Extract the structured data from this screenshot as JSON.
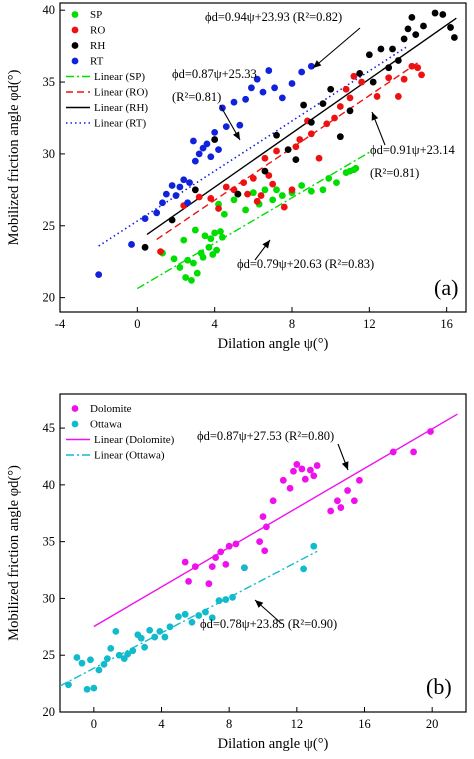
{
  "chart_data": [
    {
      "type": "scatter",
      "panel_label": "(a)",
      "xlabel": "Dilation angle ψ(°)",
      "ylabel": "Mobilized friction angle φd(°)",
      "xlim": [
        -4,
        17
      ],
      "ylim": [
        19,
        40.5
      ],
      "xticks": [
        -4,
        0,
        4,
        8,
        12,
        16
      ],
      "yticks": [
        20,
        25,
        30,
        35,
        40
      ],
      "legend_position": "top-left",
      "series": [
        {
          "name": "SP",
          "color": "#00dd00",
          "x": [
            1.3,
            1.9,
            2.2,
            2.4,
            2.5,
            2.6,
            2.8,
            2.9,
            3.0,
            3.1,
            3.3,
            3.4,
            3.5,
            3.7,
            3.8,
            3.9,
            4.0,
            4.1,
            4.2,
            4.3,
            4.4,
            4.5,
            5.0,
            5.2,
            5.6,
            6.0,
            6.3,
            6.6,
            7.0,
            7.2,
            7.5,
            8.0,
            8.5,
            9.0,
            9.6,
            9.9,
            10.3,
            10.8,
            11.0,
            11.2,
            11.3
          ],
          "y": [
            23.1,
            22.7,
            22.1,
            24.0,
            21.4,
            22.6,
            21.2,
            22.4,
            24.7,
            21.7,
            23.1,
            22.8,
            24.3,
            23.5,
            24.1,
            23.0,
            24.5,
            23.3,
            26.5,
            24.6,
            24.2,
            25.8,
            26.8,
            27.2,
            26.1,
            27.3,
            26.5,
            27.5,
            26.8,
            27.5,
            27.1,
            27.3,
            27.8,
            27.4,
            27.5,
            28.3,
            28.0,
            28.7,
            28.8,
            28.9,
            29.0
          ]
        },
        {
          "name": "RO",
          "color": "#ee1111",
          "x": [
            1.2,
            2.4,
            3.2,
            3.8,
            4.2,
            4.6,
            5.0,
            5.5,
            5.7,
            6.0,
            6.2,
            6.4,
            6.6,
            6.8,
            7.0,
            7.2,
            7.6,
            8.0,
            8.2,
            8.4,
            8.8,
            9.0,
            9.4,
            9.8,
            10.2,
            10.5,
            10.8,
            11.0,
            11.2,
            11.6,
            12.4,
            13.0,
            13.5,
            13.8,
            14.2,
            14.5,
            14.7
          ],
          "y": [
            23.2,
            26.4,
            27.0,
            26.9,
            26.2,
            27.7,
            27.5,
            28.0,
            27.2,
            28.3,
            26.7,
            27.1,
            29.7,
            28.5,
            27.9,
            30.2,
            26.3,
            27.5,
            30.5,
            31.0,
            32.3,
            31.4,
            29.7,
            32.1,
            32.5,
            33.3,
            34.5,
            33.9,
            35.4,
            35.0,
            34.0,
            35.3,
            34.0,
            35.2,
            36.1,
            36.0,
            35.5
          ]
        },
        {
          "name": "RH",
          "color": "#000000",
          "x": [
            0.4,
            1.8,
            3.0,
            4.0,
            5.2,
            6.6,
            7.2,
            7.8,
            8.2,
            8.6,
            9.0,
            9.6,
            10.0,
            10.5,
            11.0,
            11.5,
            12.0,
            12.2,
            12.6,
            13.0,
            13.2,
            13.5,
            13.8,
            14.0,
            14.2,
            14.4,
            14.8,
            15.4,
            15.8,
            16.2,
            16.4
          ],
          "y": [
            23.5,
            25.4,
            27.5,
            31.0,
            27.2,
            28.8,
            31.3,
            30.3,
            29.6,
            33.4,
            32.2,
            33.5,
            34.5,
            31.2,
            33.0,
            35.6,
            36.9,
            35.0,
            37.3,
            36.0,
            37.3,
            36.5,
            38.0,
            38.7,
            39.5,
            38.3,
            38.9,
            39.8,
            39.7,
            38.8,
            38.1
          ]
        },
        {
          "name": "RT",
          "color": "#1122dd",
          "x": [
            -2.0,
            -0.3,
            0.4,
            1.0,
            1.3,
            1.5,
            1.8,
            2.0,
            2.2,
            2.4,
            2.6,
            2.7,
            2.9,
            3.0,
            3.2,
            3.4,
            3.6,
            3.8,
            4.0,
            4.2,
            4.4,
            4.6,
            5.0,
            5.3,
            5.6,
            5.9,
            6.2,
            6.5,
            6.8,
            7.1,
            7.5,
            8.0,
            8.5,
            9.0
          ],
          "y": [
            21.6,
            23.7,
            25.5,
            25.9,
            26.6,
            27.2,
            27.8,
            27.1,
            27.7,
            28.2,
            26.6,
            28.0,
            30.9,
            29.5,
            30.0,
            30.4,
            30.7,
            29.8,
            31.5,
            30.3,
            33.2,
            31.9,
            33.6,
            32.0,
            33.8,
            34.6,
            35.2,
            34.3,
            35.8,
            34.6,
            33.9,
            34.9,
            35.7,
            36.1
          ]
        }
      ],
      "fit_lines": [
        {
          "name": "Linear (SP)",
          "color": "#00dd00",
          "style": "dashdot",
          "slope": 0.79,
          "intercept": 20.63,
          "x_range": [
            0,
            12
          ]
        },
        {
          "name": "Linear (RO)",
          "color": "#ee1111",
          "style": "dash",
          "slope": 0.91,
          "intercept": 23.14,
          "x_range": [
            1,
            14.5
          ]
        },
        {
          "name": "Linear (RH)",
          "color": "#000000",
          "style": "solid",
          "slope": 0.94,
          "intercept": 23.93,
          "x_range": [
            0.5,
            16.5
          ]
        },
        {
          "name": "Linear (RT)",
          "color": "#1122dd",
          "style": "dot",
          "slope": 0.87,
          "intercept": 25.33,
          "x_range": [
            -2,
            14
          ]
        }
      ],
      "annotations": [
        {
          "text": "ϕd=0.94ψ+23.93 (R²=0.82)"
        },
        {
          "text": "ϕd=0.87ψ+25.33"
        },
        {
          "text": "(R²=0.81)"
        },
        {
          "text": "ϕd=0.91ψ+23.14"
        },
        {
          "text": "(R²=0.81)"
        },
        {
          "text": "ϕd=0.79ψ+20.63 (R²=0.83)"
        }
      ]
    },
    {
      "type": "scatter",
      "panel_label": "(b)",
      "xlabel": "Dilation angle ψ(°)",
      "ylabel": "Mobilized friction angle φd(°)",
      "xlim": [
        -2,
        22
      ],
      "ylim": [
        20,
        48
      ],
      "xticks": [
        0,
        4,
        8,
        12,
        16,
        20
      ],
      "yticks": [
        20,
        25,
        30,
        35,
        40,
        45
      ],
      "legend_position": "top-left",
      "series": [
        {
          "name": "Dolomite",
          "color": "#ee11ee",
          "x": [
            5.4,
            5.6,
            6.0,
            6.8,
            7.0,
            7.2,
            7.5,
            7.8,
            8.0,
            8.4,
            8.9,
            9.8,
            10.0,
            10.1,
            10.2,
            10.6,
            11.2,
            11.6,
            11.8,
            12.0,
            12.3,
            12.5,
            12.8,
            13.0,
            13.2,
            14.0,
            14.4,
            14.6,
            15.0,
            15.4,
            15.7,
            17.7,
            18.9,
            19.9
          ],
          "y": [
            33.2,
            31.5,
            32.8,
            31.3,
            32.8,
            33.6,
            34.1,
            33.0,
            34.6,
            34.8,
            32.7,
            35.0,
            37.2,
            34.2,
            36.3,
            38.6,
            40.4,
            39.7,
            41.2,
            41.8,
            41.4,
            40.5,
            41.3,
            40.8,
            41.7,
            37.7,
            38.6,
            38.0,
            39.5,
            38.6,
            40.4,
            42.9,
            42.9,
            44.7
          ]
        },
        {
          "name": "Ottawa",
          "color": "#11bbcc",
          "x": [
            -1.5,
            -1.0,
            -0.7,
            -0.4,
            -0.2,
            0.0,
            0.3,
            0.6,
            0.8,
            1.0,
            1.3,
            1.5,
            1.8,
            2.0,
            2.3,
            2.6,
            2.8,
            3.0,
            3.3,
            3.6,
            3.9,
            4.2,
            4.5,
            5.0,
            5.4,
            5.8,
            6.2,
            6.6,
            7.0,
            7.4,
            7.8,
            8.2,
            8.9,
            12.4,
            13.0
          ],
          "y": [
            22.4,
            24.8,
            24.3,
            22.0,
            24.6,
            22.1,
            23.7,
            24.2,
            24.7,
            25.6,
            27.1,
            25.0,
            24.7,
            25.1,
            25.4,
            26.8,
            26.5,
            25.7,
            27.2,
            26.6,
            27.1,
            26.6,
            27.5,
            28.4,
            28.6,
            27.9,
            28.5,
            28.8,
            28.3,
            29.8,
            29.9,
            30.1,
            32.7,
            32.6,
            34.6
          ]
        }
      ],
      "fit_lines": [
        {
          "name": "Linear (Dolomite)",
          "color": "#ee11ee",
          "style": "solid",
          "slope": 0.87,
          "intercept": 27.53,
          "x_range": [
            0,
            21.5
          ]
        },
        {
          "name": "Linear (Ottawa)",
          "color": "#11bbcc",
          "style": "dashdot",
          "slope": 0.78,
          "intercept": 23.85,
          "x_range": [
            -2,
            13.2
          ]
        }
      ],
      "annotations": [
        {
          "text": "ϕd=0.87ψ+27.53 (R²=0.80)"
        },
        {
          "text": "ϕd=0.78ψ+23.85 (R²=0.90)"
        }
      ]
    }
  ]
}
